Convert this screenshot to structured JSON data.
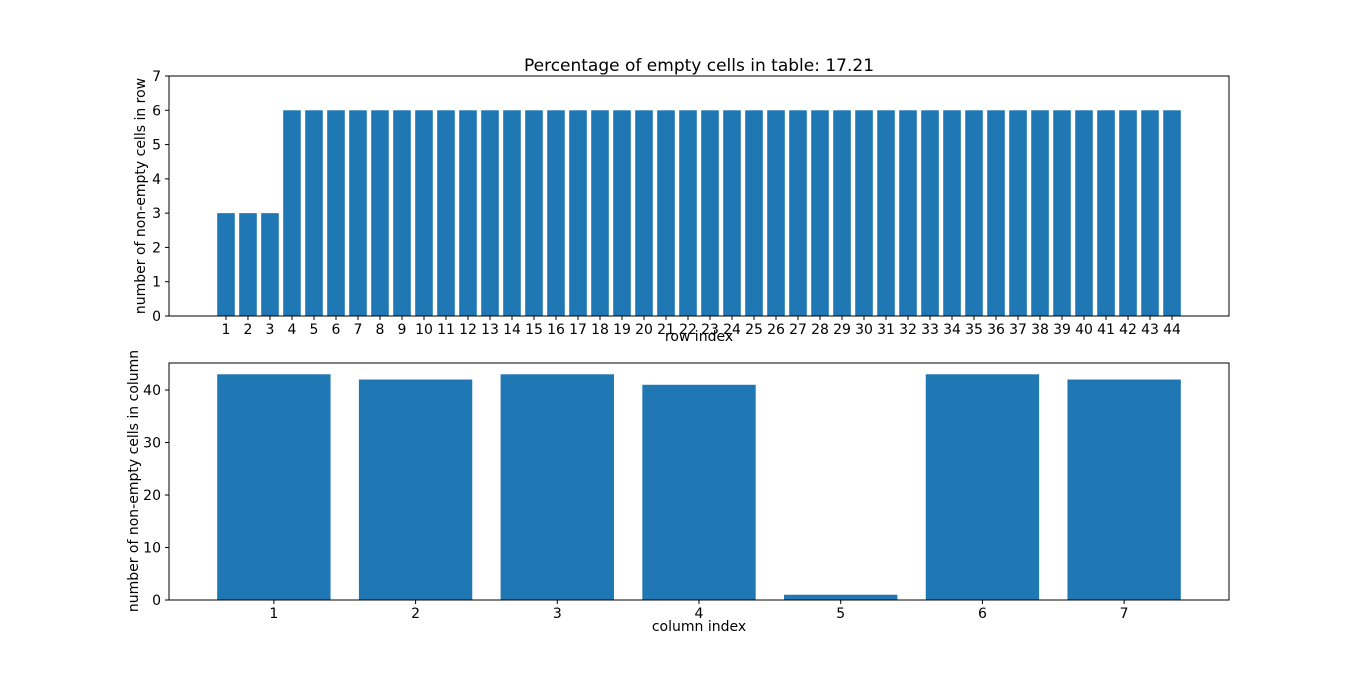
{
  "figure": {
    "background": "#ffffff",
    "bar_color": "#1f77b4",
    "axis_color": "#000000"
  },
  "chart_data": [
    {
      "type": "bar",
      "title": "Percentage of empty cells in table: 17.21",
      "xlabel": "row index",
      "ylabel": "number of non-empty cells in row",
      "categories": [
        1,
        2,
        3,
        4,
        5,
        6,
        7,
        8,
        9,
        10,
        11,
        12,
        13,
        14,
        15,
        16,
        17,
        18,
        19,
        20,
        21,
        22,
        23,
        24,
        25,
        26,
        27,
        28,
        29,
        30,
        31,
        32,
        33,
        34,
        35,
        36,
        37,
        38,
        39,
        40,
        41,
        42,
        43,
        44
      ],
      "values": [
        3,
        3,
        3,
        6,
        6,
        6,
        6,
        6,
        6,
        6,
        6,
        6,
        6,
        6,
        6,
        6,
        6,
        6,
        6,
        6,
        6,
        6,
        6,
        6,
        6,
        6,
        6,
        6,
        6,
        6,
        6,
        6,
        6,
        6,
        6,
        6,
        6,
        6,
        6,
        6,
        6,
        6,
        6,
        6
      ],
      "ylim": [
        0,
        7
      ],
      "yticks": [
        0,
        1,
        2,
        3,
        4,
        5,
        6,
        7
      ],
      "grid": false,
      "legend": "none"
    },
    {
      "type": "bar",
      "title": "",
      "xlabel": "column index",
      "ylabel": "number of non-empty cells in column",
      "categories": [
        1,
        2,
        3,
        4,
        5,
        6,
        7
      ],
      "values": [
        43,
        42,
        43,
        41,
        1,
        43,
        42
      ],
      "ylim": [
        0,
        45.15
      ],
      "yticks": [
        0,
        10,
        20,
        30,
        40
      ],
      "grid": false,
      "legend": "none"
    }
  ]
}
